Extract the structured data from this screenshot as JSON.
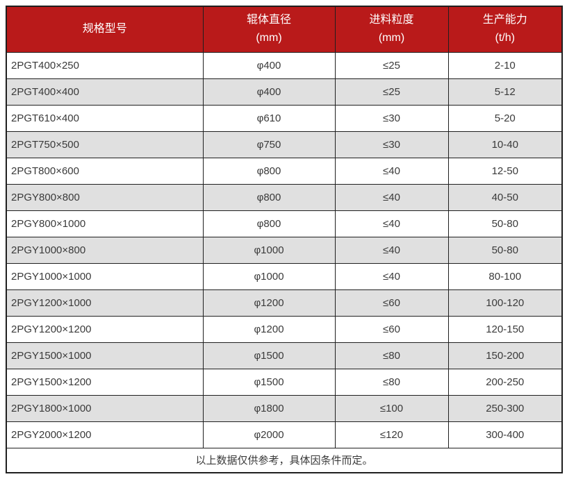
{
  "table": {
    "columns": [
      {
        "key": "model",
        "title": "规格型号",
        "unit": ""
      },
      {
        "key": "roller-diameter",
        "title": "辊体直径",
        "unit": "(mm)"
      },
      {
        "key": "feed-size",
        "title": "进料粒度",
        "unit": "(mm)"
      },
      {
        "key": "capacity",
        "title": "生产能力",
        "unit": "(t/h)"
      }
    ],
    "rows": [
      [
        "2PGT400×250",
        "φ400",
        "≤25",
        "2-10"
      ],
      [
        "2PGT400×400",
        "φ400",
        "≤25",
        "5-12"
      ],
      [
        "2PGT610×400",
        "φ610",
        "≤30",
        "5-20"
      ],
      [
        "2PGT750×500",
        "φ750",
        "≤30",
        "10-40"
      ],
      [
        "2PGT800×600",
        "φ800",
        "≤40",
        "12-50"
      ],
      [
        "2PGY800×800",
        "φ800",
        "≤40",
        "40-50"
      ],
      [
        "2PGY800×1000",
        "φ800",
        "≤40",
        "50-80"
      ],
      [
        "2PGY1000×800",
        "φ1000",
        "≤40",
        "50-80"
      ],
      [
        "2PGY1000×1000",
        "φ1000",
        "≤40",
        "80-100"
      ],
      [
        "2PGY1200×1000",
        "φ1200",
        "≤60",
        "100-120"
      ],
      [
        "2PGY1200×1200",
        "φ1200",
        "≤60",
        "120-150"
      ],
      [
        "2PGY1500×1000",
        "φ1500",
        "≤80",
        "150-200"
      ],
      [
        "2PGY1500×1200",
        "φ1500",
        "≤80",
        "200-250"
      ],
      [
        "2PGY1800×1000",
        "φ1800",
        "≤100",
        "250-300"
      ],
      [
        "2PGY2000×1200",
        "φ2000",
        "≤120",
        "300-400"
      ]
    ],
    "footer_note": "以上数据仅供参考，具体因条件而定。"
  },
  "colors": {
    "header_bg": "#b91a1a",
    "header_text": "#ffffff",
    "row_bg": "#ffffff",
    "row_alt_bg": "#e0e0e0",
    "border": "#1f1f1f",
    "text": "#3a3a3a"
  }
}
